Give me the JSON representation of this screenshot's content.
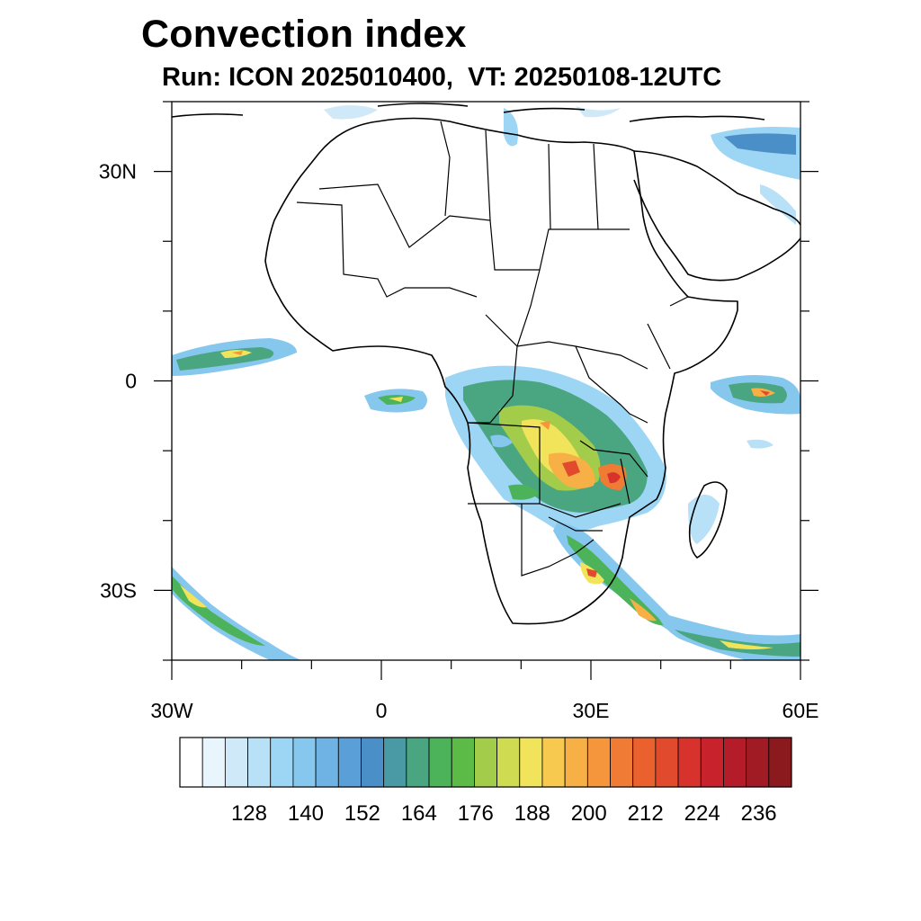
{
  "title": "Convection index",
  "subtitle": "Run: ICON 2025010400,  VT: 20250108-12UTC",
  "axes": {
    "lon_labels": [
      {
        "lon": -30,
        "text": "30W"
      },
      {
        "lon": 0,
        "text": "0"
      },
      {
        "lon": 30,
        "text": "30E"
      },
      {
        "lon": 60,
        "text": "60E"
      }
    ],
    "lat_labels": [
      {
        "lat": 30,
        "text": "30N"
      },
      {
        "lat": 0,
        "text": "0"
      },
      {
        "lat": -30,
        "text": "30S"
      }
    ],
    "lon_range": [
      -30,
      60
    ],
    "lat_range": [
      -40,
      40
    ]
  },
  "colorbar": {
    "colors": [
      "#ffffff",
      "#e8f5fc",
      "#cfe9f8",
      "#b8e0f6",
      "#9dd6f4",
      "#86c7ed",
      "#6fb3e5",
      "#5b9fd8",
      "#4b8fc8",
      "#4a9aa6",
      "#4aa681",
      "#4db35a",
      "#5cba47",
      "#a2cc4a",
      "#cfdc52",
      "#f1e45a",
      "#f8c94f",
      "#f7b046",
      "#f5963c",
      "#f07b34",
      "#ea612e",
      "#e24a2d",
      "#d8322c",
      "#c8232d",
      "#b41c2a",
      "#a01b24",
      "#8b1a1e"
    ],
    "labels": [
      "128",
      "140",
      "152",
      "164",
      "176",
      "188",
      "200",
      "212",
      "224",
      "236"
    ]
  }
}
